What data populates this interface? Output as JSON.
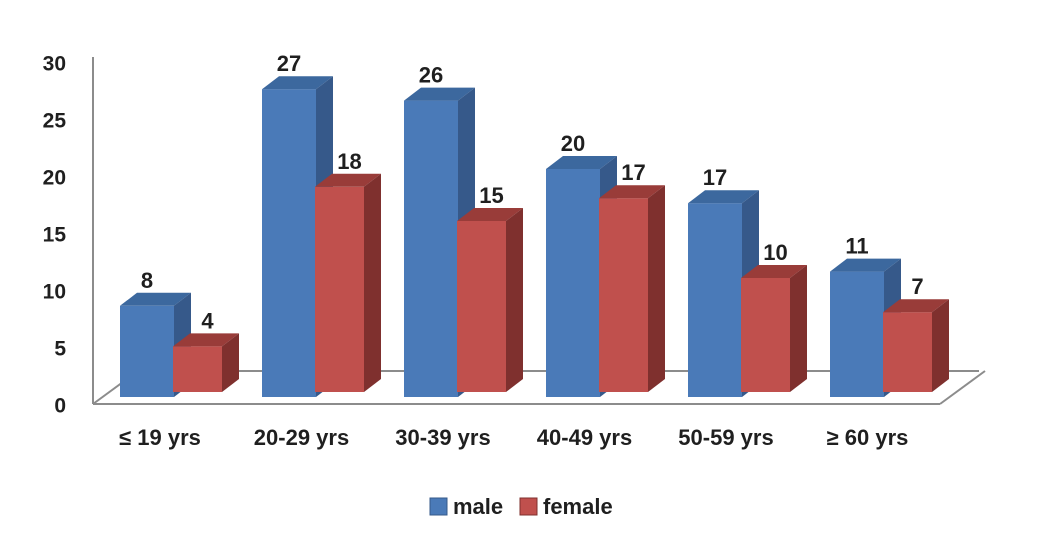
{
  "chart_data": {
    "type": "bar",
    "variant": "3d-clustered-column",
    "title": "",
    "xlabel": "",
    "ylabel": "",
    "categories": [
      "≤ 19 yrs",
      "20-29 yrs",
      "30-39 yrs",
      "40-49 yrs",
      "50-59 yrs",
      "≥ 60 yrs"
    ],
    "series": [
      {
        "name": "male",
        "values": [
          8,
          27,
          26,
          20,
          17,
          11
        ],
        "color_front": "#4a7ab8",
        "color_top": "#3c689e",
        "color_side": "#36598a"
      },
      {
        "name": "female",
        "values": [
          4,
          18,
          15,
          17,
          10,
          7
        ],
        "color_front": "#c0504d",
        "color_top": "#993c39",
        "color_side": "#7f302e"
      }
    ],
    "y_ticks": [
      "0",
      "5",
      "10",
      "15",
      "20",
      "25",
      "30"
    ],
    "y_tick_values": [
      0,
      5,
      10,
      15,
      20,
      25,
      30
    ],
    "ylim": [
      0,
      30
    ],
    "grid": false,
    "data_labels": true,
    "legend_position": "bottom",
    "axis_color": "#8c8c8c",
    "text_color": "#1f1f1f",
    "background": "#ffffff"
  }
}
